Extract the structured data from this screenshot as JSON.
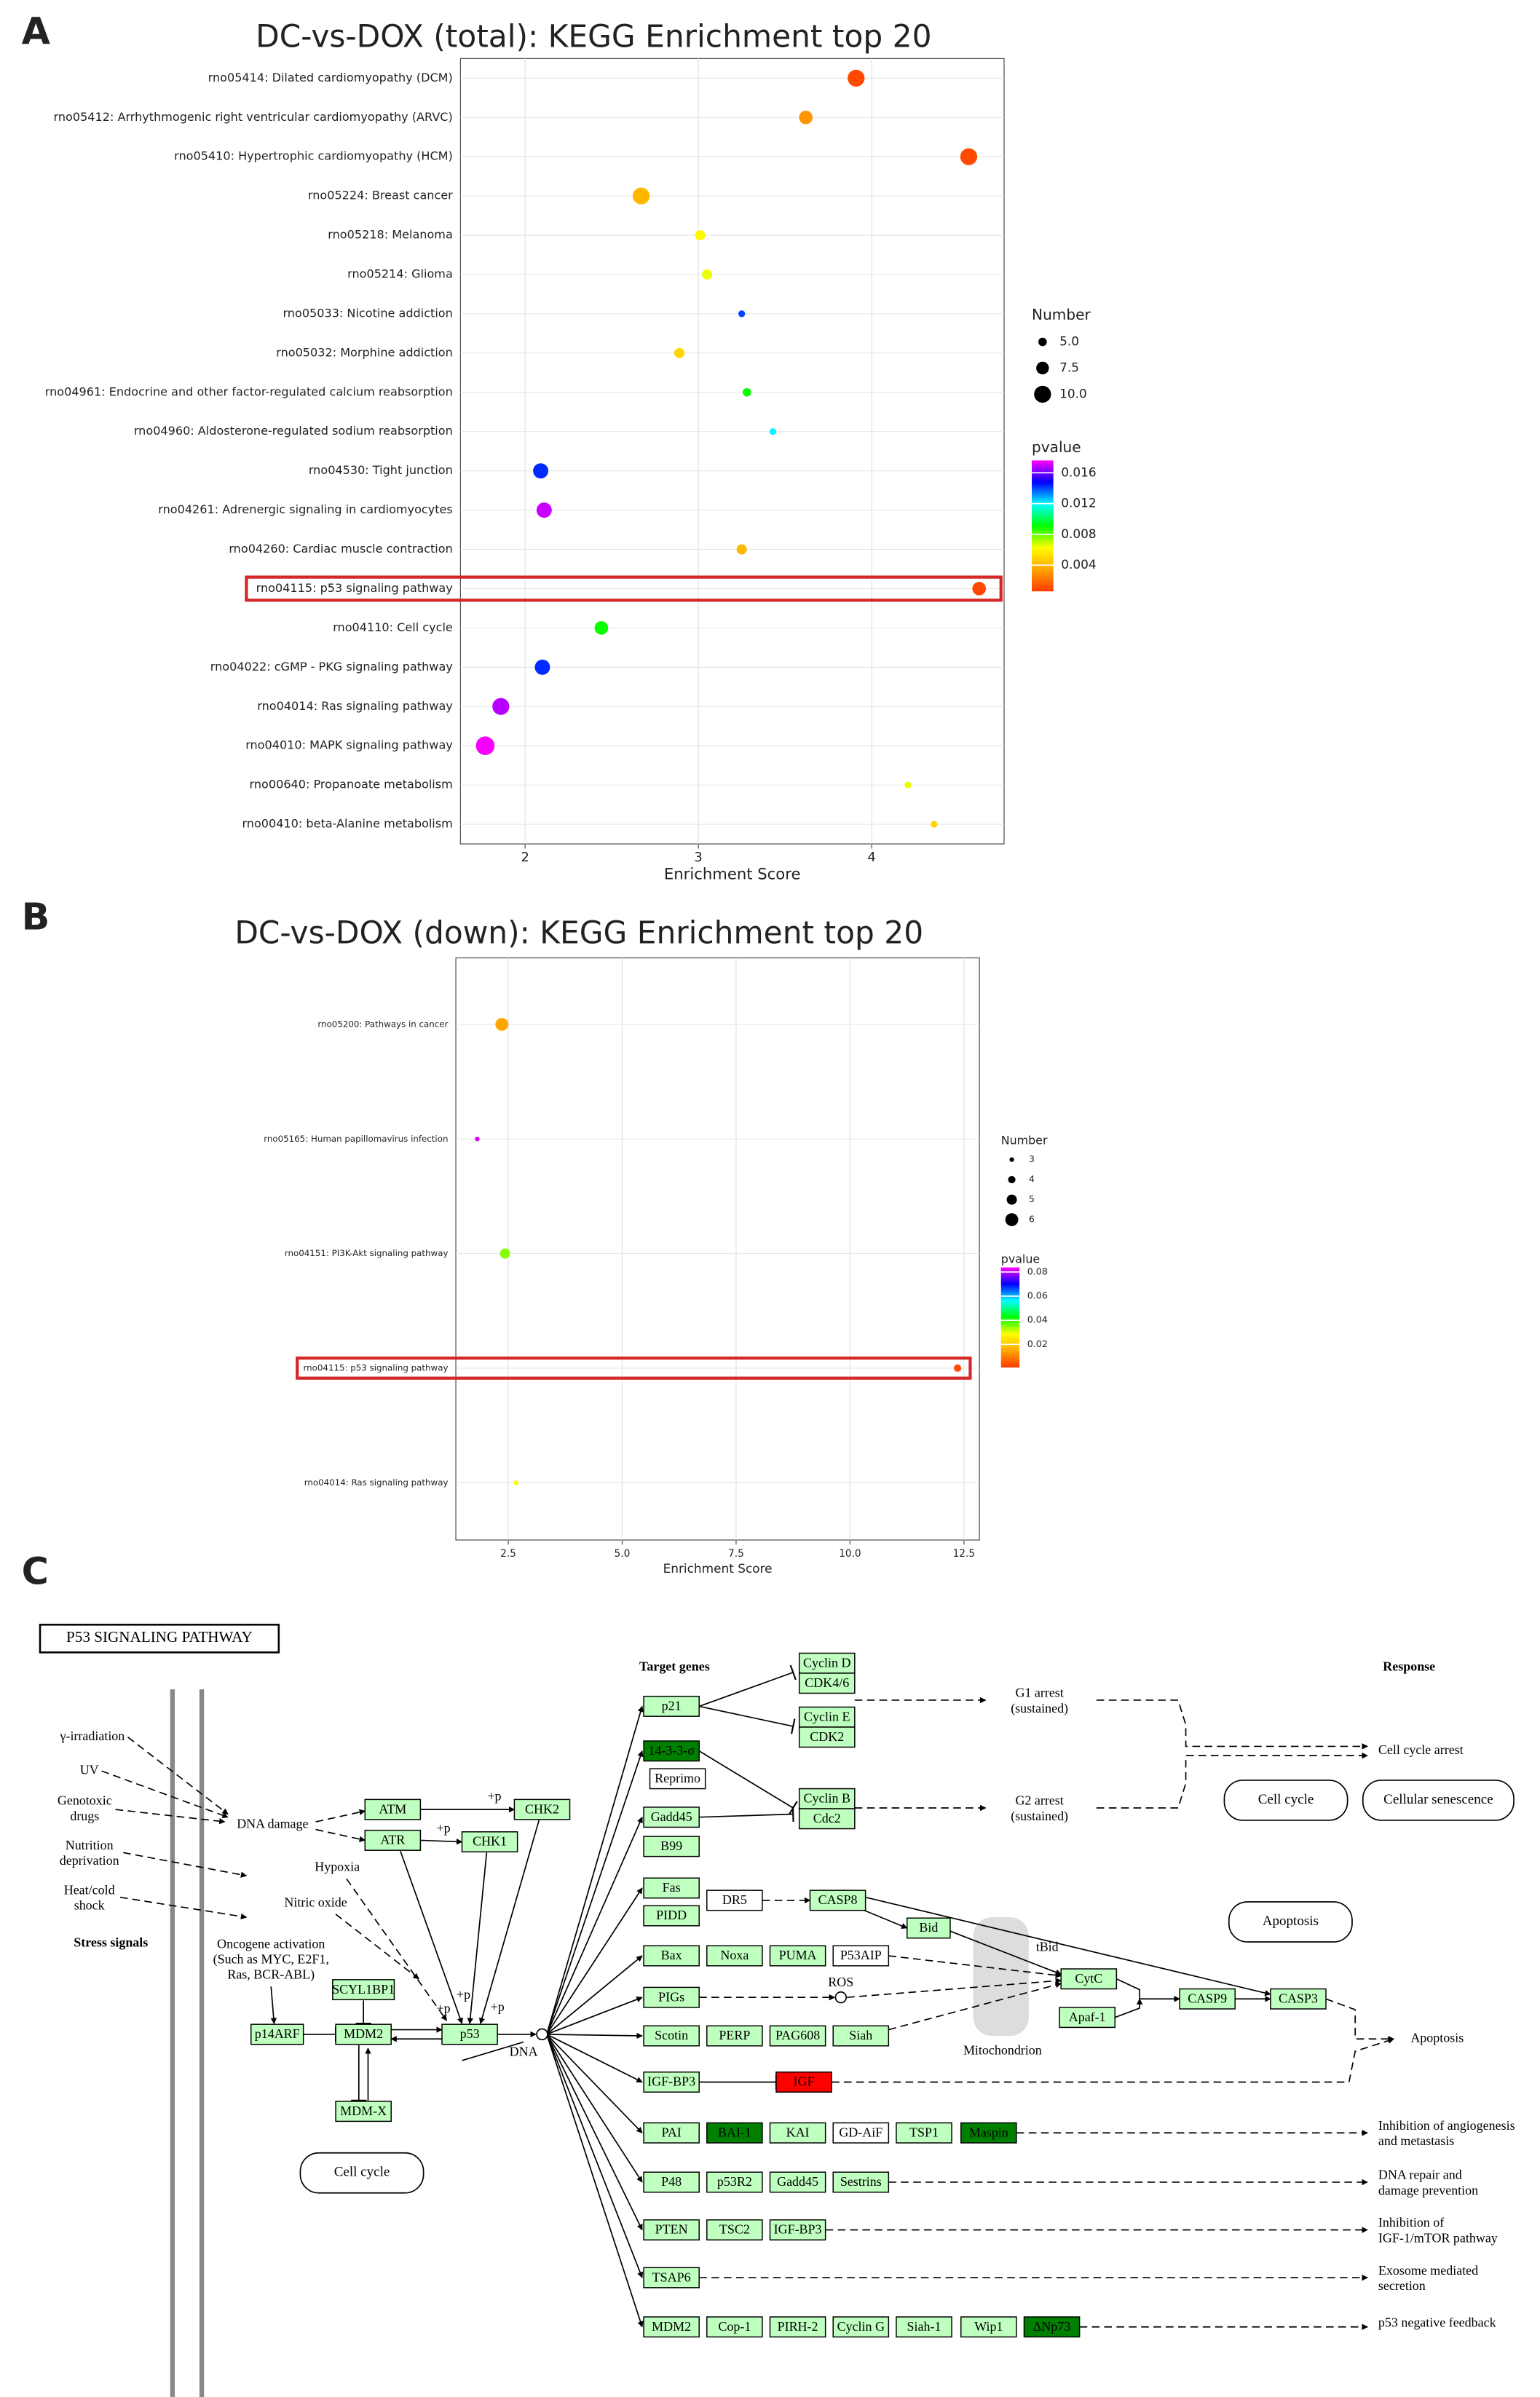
{
  "panel_labels": [
    "A",
    "B",
    "C"
  ],
  "chart_data": [
    {
      "type": "scatter",
      "title": "DC-vs-DOX (total): KEGG Enrichment top 20",
      "x_label": "Enrichment Score",
      "categories": [
        "rno05414: Dilated cardiomyopathy (DCM)",
        "rno05412: Arrhythmogenic right ventricular cardiomyopathy (ARVC)",
        "rno05410: Hypertrophic cardiomyopathy (HCM)",
        "rno05224: Breast cancer",
        "rno05218: Melanoma",
        "rno05214: Glioma",
        "rno05033: Nicotine addiction",
        "rno05032: Morphine addiction",
        "rno04961: Endocrine and other factor-regulated calcium reabsorption",
        "rno04960: Aldosterone-regulated sodium reabsorption",
        "rno04530: Tight junction",
        "rno04261: Adrenergic signaling in cardiomyocytes",
        "rno04260: Cardiac muscle contraction",
        "rno04115: p53 signaling pathway",
        "rno04110: Cell cycle",
        "rno04022: cGMP - PKG signaling pathway",
        "rno04014: Ras signaling pathway",
        "rno04010: MAPK signaling pathway",
        "rno00640: Propanoate metabolism",
        "rno00410: beta-Alanine metabolism"
      ],
      "x": [
        3.91,
        3.62,
        4.56,
        2.67,
        3.01,
        3.05,
        3.25,
        2.89,
        3.28,
        3.43,
        2.09,
        2.11,
        3.25,
        4.62,
        2.44,
        2.1,
        1.86,
        1.77,
        4.21,
        4.36
      ],
      "size": [
        10,
        8,
        10,
        10,
        6,
        6,
        4,
        6,
        5,
        4,
        9,
        9,
        6,
        8,
        8,
        9,
        10,
        11,
        4,
        4
      ],
      "pvalue": [
        0.001,
        0.003,
        0.001,
        0.004,
        0.006,
        0.0065,
        0.014,
        0.005,
        0.009,
        0.012,
        0.0143,
        0.017,
        0.004,
        0.001,
        0.009,
        0.0143,
        0.0168,
        0.0175,
        0.0065,
        0.005
      ],
      "xlim": [
        1.627,
        4.764
      ],
      "xticks": [
        2,
        3,
        4
      ],
      "grid": true,
      "size_legend": {
        "title": "Number",
        "values": [
          {
            "value": 5,
            "label": "5.0"
          },
          7.5,
          {
            "value": 10,
            "label": "10.0"
          }
        ]
      },
      "color_legend": {
        "title": "pvalue",
        "lim": [
          0.0006,
          0.0176
        ],
        "ticks": [
          0.016,
          0.012,
          0.008,
          0.004
        ],
        "colors": [
          "#ff3a00",
          "#ffa500",
          "#ffff00",
          "#00ff00",
          "#00ffff",
          "#0000ff",
          "#ff00ff"
        ]
      },
      "highlight_color": "#d62728"
    },
    {
      "type": "scatter",
      "title": "DC-vs-DOX (down): KEGG Enrichment top 20",
      "x_label": "Enrichment Score",
      "categories": [
        "rno05200: Pathways in cancer",
        "rno05165: Human papillomavirus infection",
        "rno04151: PI3K-Akt signaling pathway",
        "rno04115: p53 signaling pathway",
        "rno04014: Ras signaling pathway"
      ],
      "x": [
        2.36,
        1.82,
        2.43,
        12.36,
        2.67
      ],
      "size": [
        6,
        3,
        5,
        4,
        3
      ],
      "pvalue": [
        0.015,
        0.082,
        0.035,
        0.003,
        0.028
      ],
      "xlim": [
        1.35,
        12.84
      ],
      "xticks": [
        2.5,
        {
          "value": 5,
          "label": "5.0"
        },
        7.5,
        {
          "value": 10,
          "label": "10.0"
        },
        12.5
      ],
      "grid": true,
      "size_legend": {
        "title": "Number",
        "values": [
          3,
          4,
          5,
          6
        ]
      },
      "color_legend": {
        "title": "pvalue",
        "lim": [
          0.0008,
          0.0838
        ],
        "ticks": [
          0.08,
          0.06,
          0.04,
          0.02
        ],
        "colors": [
          "#ff3a00",
          "#ffa500",
          "#ffff00",
          "#00ff00",
          "#00ffff",
          "#0000ff",
          "#ff00ff"
        ]
      },
      "highlight_color": "#d62728"
    }
  ],
  "diagram": {
    "title": "P53 SIGNALING PATHWAY",
    "node_fill": "#bfffbf",
    "nodes": [
      {
        "label": "ATM"
      },
      {
        "label": "ATR"
      },
      {
        "label": "CHK2"
      },
      {
        "label": "CHK1"
      },
      {
        "label": "SCYL1BP1"
      },
      {
        "label": "p14ARF"
      },
      {
        "label": "MDM2"
      },
      {
        "label": "MDM-X"
      },
      {
        "label": "p53"
      },
      {
        "label": "Cyclin D"
      },
      {
        "label": "CDK4/6"
      },
      {
        "label": "Cyclin E"
      },
      {
        "label": "CDK2"
      },
      {
        "label": "Cyclin B"
      },
      {
        "label": "Cdc2"
      },
      {
        "label": "p21"
      },
      {
        "label": "14-3-3-σ",
        "fill": "#008000"
      },
      {
        "label": "Reprimo",
        "fill": "#ffffff"
      },
      {
        "label": "Gadd45"
      },
      {
        "label": "B99"
      },
      {
        "label": "Fas"
      },
      {
        "label": "PIDD"
      },
      {
        "label": "DR5",
        "fill": "#ffffff"
      },
      {
        "label": "CASP8"
      },
      {
        "label": "Bid"
      },
      {
        "label": "Bax"
      },
      {
        "label": "Noxa"
      },
      {
        "label": "PUMA"
      },
      {
        "label": "P53AIP",
        "fill": "#ffffff"
      },
      {
        "label": "PIGs"
      },
      {
        "label": "Scotin"
      },
      {
        "label": "PERP"
      },
      {
        "label": "PAG608"
      },
      {
        "label": "Siah"
      },
      {
        "label": "CytC"
      },
      {
        "label": "Apaf-1"
      },
      {
        "label": "CASP9"
      },
      {
        "label": "CASP3"
      },
      {
        "label": "IGF-BP3"
      },
      {
        "label": "IGF",
        "fill": "#ff0000"
      },
      {
        "label": "PAI"
      },
      {
        "label": "BAI-1",
        "fill": "#008000"
      },
      {
        "label": "KAI"
      },
      {
        "label": "GD-AiF",
        "fill": "#ffffff"
      },
      {
        "label": "TSP1"
      },
      {
        "label": "Maspin",
        "fill": "#008000"
      },
      {
        "label": "P48"
      },
      {
        "label": "p53R2"
      },
      {
        "label": "Gadd45"
      },
      {
        "label": "Sestrins"
      },
      {
        "label": "PTEN"
      },
      {
        "label": "TSC2"
      },
      {
        "label": "IGF-BP3"
      },
      {
        "label": "TSAP6"
      },
      {
        "label": "MDM2"
      },
      {
        "label": "Cop-1"
      },
      {
        "label": "PIRH-2"
      },
      {
        "label": "Cyclin G"
      },
      {
        "label": "Siah-1"
      },
      {
        "label": "Wip1"
      },
      {
        "label": "ΔNp73",
        "fill": "#008000"
      }
    ],
    "labels": [
      [
        "γ-irradiation"
      ],
      [
        "UV"
      ],
      [
        "Genotoxic",
        "drugs"
      ],
      [
        "Nutrition",
        "deprivation"
      ],
      [
        "Heat/cold",
        "shock"
      ],
      [
        "Stress signals"
      ],
      [
        "DNA damage"
      ],
      [
        "Hypoxia"
      ],
      [
        "Nitric oxide"
      ],
      [
        "Oncogene activation",
        "(Such as MYC, E2F1,",
        "Ras, BCR-ABL)"
      ],
      [
        "DNA"
      ],
      [
        "+p"
      ],
      [
        "+p"
      ],
      [
        "+p"
      ],
      [
        "+p"
      ],
      [
        "+p"
      ],
      [
        "Target genes"
      ],
      [
        "Response"
      ],
      [
        "G1 arrest",
        "(sustained)"
      ],
      [
        "G2 arrest",
        "(sustained)"
      ],
      [
        "ROS"
      ],
      [
        "tBid"
      ],
      [
        "Mitochondrion"
      ],
      [
        "Cell cycle arrest"
      ],
      [
        "Apoptosis"
      ],
      [
        "Inhibition of angiogenesis",
        "and metastasis"
      ],
      [
        "DNA repair and",
        "damage prevention"
      ],
      [
        "Inhibition of",
        "IGF-1/mTOR pathway"
      ],
      [
        "Exosome mediated",
        "secretion"
      ],
      [
        "p53 negative feedback"
      ]
    ],
    "rounded_boxes": [
      "Cell cycle",
      "Cell cycle",
      "Cellular senescence",
      "Apoptosis"
    ]
  }
}
